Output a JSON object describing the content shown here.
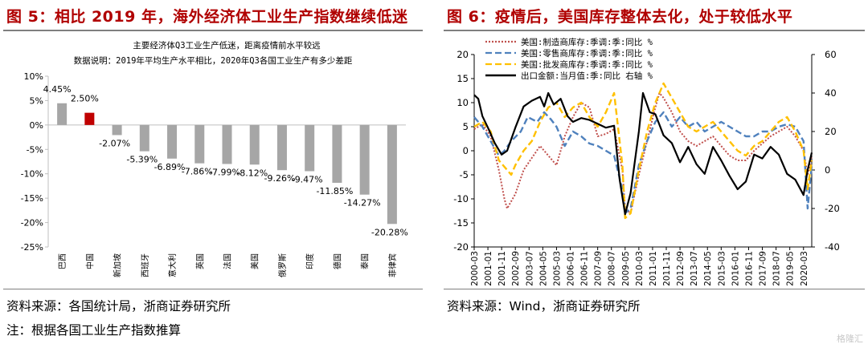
{
  "left": {
    "fig_title": "图 5：相比 2019 年，海外经济体工业生产指数继续低迷",
    "source": "资料来源：各国统计局，浙商证券研究所",
    "note": "注：根据各国工业生产指数推算"
  },
  "right": {
    "fig_title": "图 6：疫情后，美国库存整体去化，处于较低水平",
    "source": "资料来源：Wind，浙商证券研究所"
  },
  "watermark": "格隆汇",
  "chart_data": [
    {
      "type": "bar",
      "title": "主要经济体Q3工业生产低迷，距离疫情前水平较远",
      "subtitle": "数据说明：2019年平均生产水平相比，2020年Q3各国工业生产有多少差距",
      "categories": [
        "巴西",
        "中国",
        "新加坡",
        "西班牙",
        "意大利",
        "英国",
        "法国",
        "美国",
        "俄罗斯",
        "印度",
        "德国",
        "泰国",
        "菲律宾"
      ],
      "values": [
        4.45,
        2.5,
        -2.07,
        -5.39,
        -6.89,
        -7.86,
        -7.99,
        -8.12,
        -9.26,
        -9.47,
        -11.85,
        -14.27,
        -20.28
      ],
      "value_labels": [
        "4.45%",
        "2.50%",
        "-2.07%",
        "-5.39%",
        "-6.89%",
        "-7.86%",
        "-7.99%",
        "-8.12%",
        "-9.26%",
        "-9.47%",
        "-11.85%",
        "-14.27%",
        "-20.28%"
      ],
      "highlight_index": 1,
      "colors": {
        "bar": "#a6a6a6",
        "highlight": "#c00000"
      },
      "ylim": [
        -25,
        10
      ],
      "yticks": [
        10,
        5,
        0,
        -5,
        -10,
        -15,
        -20,
        -25
      ],
      "ytick_labels": [
        "10%",
        "5%",
        "0%",
        "-5%",
        "-10%",
        "-15%",
        "-20%",
        "-25%"
      ],
      "grid": false
    },
    {
      "type": "line",
      "x_labels": [
        "2000-03",
        "2001-01",
        "2001-11",
        "2002-09",
        "2003-07",
        "2004-05",
        "2005-03",
        "2006-01",
        "2006-11",
        "2007-09",
        "2008-07",
        "2009-05",
        "2010-03",
        "2011-01",
        "2011-11",
        "2012-09",
        "2013-07",
        "2014-05",
        "2015-03",
        "2016-01",
        "2016-11",
        "2017-09",
        "2018-07",
        "2019-05",
        "2020-03"
      ],
      "x_start": "2000-03",
      "x_end": "2020-09",
      "ylim_left": [
        -20,
        20
      ],
      "yticks_left": [
        20,
        15,
        10,
        5,
        0,
        -5,
        -10,
        -15,
        -20
      ],
      "ylim_right": [
        -40,
        60
      ],
      "yticks_right": [
        60,
        40,
        20,
        0,
        -20,
        -40
      ],
      "legend_position": "top-left",
      "grid": false,
      "series": [
        {
          "name": "美国:制造商库存:季调:季:同比 %",
          "style": "dotted",
          "color": "#c0504d",
          "axis": "left",
          "points": [
            [
              "2000-03",
              4.5
            ],
            [
              "2000-09",
              5.5
            ],
            [
              "2001-03",
              3
            ],
            [
              "2001-09",
              -4
            ],
            [
              "2002-01",
              -10
            ],
            [
              "2002-03",
              -12
            ],
            [
              "2002-09",
              -9
            ],
            [
              "2003-03",
              -4
            ],
            [
              "2003-09",
              -1.5
            ],
            [
              "2004-03",
              1
            ],
            [
              "2004-09",
              -1
            ],
            [
              "2005-03",
              -3
            ],
            [
              "2005-09",
              3
            ],
            [
              "2006-03",
              7
            ],
            [
              "2006-09",
              10
            ],
            [
              "2007-03",
              9
            ],
            [
              "2007-09",
              3
            ],
            [
              "2008-03",
              3.5
            ],
            [
              "2008-09",
              4.5
            ],
            [
              "2009-03",
              -4
            ],
            [
              "2009-05",
              -12
            ],
            [
              "2009-09",
              -13
            ],
            [
              "2010-03",
              -5
            ],
            [
              "2010-09",
              2
            ],
            [
              "2011-03",
              9
            ],
            [
              "2011-06",
              12
            ],
            [
              "2011-09",
              11
            ],
            [
              "2012-03",
              8
            ],
            [
              "2012-09",
              4
            ],
            [
              "2013-03",
              2
            ],
            [
              "2013-09",
              1
            ],
            [
              "2014-03",
              2
            ],
            [
              "2014-09",
              3
            ],
            [
              "2015-03",
              1
            ],
            [
              "2015-09",
              -1
            ],
            [
              "2016-03",
              -2
            ],
            [
              "2016-09",
              -2
            ],
            [
              "2017-03",
              0
            ],
            [
              "2017-09",
              1.5
            ],
            [
              "2018-03",
              3
            ],
            [
              "2018-09",
              4
            ],
            [
              "2019-03",
              5
            ],
            [
              "2019-09",
              3
            ],
            [
              "2020-03",
              0
            ],
            [
              "2020-06",
              -5
            ],
            [
              "2020-09",
              -1
            ]
          ]
        },
        {
          "name": "美国:零售商库存:季调:季:同比 %",
          "style": "dashed",
          "color": "#4f81bd",
          "axis": "left",
          "points": [
            [
              "2000-03",
              7
            ],
            [
              "2000-09",
              5
            ],
            [
              "2001-03",
              2
            ],
            [
              "2001-09",
              -1
            ],
            [
              "2002-01",
              0
            ],
            [
              "2002-06",
              2
            ],
            [
              "2003-01",
              4
            ],
            [
              "2003-06",
              7
            ],
            [
              "2004-01",
              6
            ],
            [
              "2004-06",
              8
            ],
            [
              "2004-11",
              6.5
            ],
            [
              "2005-03",
              5
            ],
            [
              "2005-09",
              1
            ],
            [
              "2006-03",
              4
            ],
            [
              "2006-09",
              3
            ],
            [
              "2007-03",
              1.5
            ],
            [
              "2007-09",
              1
            ],
            [
              "2008-03",
              0
            ],
            [
              "2008-09",
              -1
            ],
            [
              "2009-03",
              -8
            ],
            [
              "2009-05",
              -13
            ],
            [
              "2009-09",
              -12
            ],
            [
              "2010-03",
              -3
            ],
            [
              "2010-09",
              2
            ],
            [
              "2011-03",
              6
            ],
            [
              "2011-09",
              8
            ],
            [
              "2012-03",
              5
            ],
            [
              "2012-09",
              7
            ],
            [
              "2013-03",
              5
            ],
            [
              "2013-09",
              6
            ],
            [
              "2014-03",
              4
            ],
            [
              "2014-09",
              5
            ],
            [
              "2015-03",
              6
            ],
            [
              "2015-09",
              5
            ],
            [
              "2016-03",
              4
            ],
            [
              "2016-09",
              3
            ],
            [
              "2017-03",
              3
            ],
            [
              "2017-09",
              4
            ],
            [
              "2018-03",
              4
            ],
            [
              "2018-09",
              5
            ],
            [
              "2019-03",
              5.5
            ],
            [
              "2019-09",
              5
            ],
            [
              "2020-03",
              2
            ],
            [
              "2020-06",
              -12
            ],
            [
              "2020-09",
              -3
            ]
          ]
        },
        {
          "name": "美国:批发商库存:季调:季:同比 %",
          "style": "dashed",
          "color": "#ffc000",
          "axis": "left",
          "points": [
            [
              "2000-03",
              5
            ],
            [
              "2000-09",
              6
            ],
            [
              "2001-03",
              4
            ],
            [
              "2001-09",
              -2
            ],
            [
              "2002-03",
              -4
            ],
            [
              "2002-06",
              -5
            ],
            [
              "2002-09",
              -3
            ],
            [
              "2003-03",
              0
            ],
            [
              "2003-09",
              2
            ],
            [
              "2004-03",
              6
            ],
            [
              "2004-09",
              9
            ],
            [
              "2005-03",
              10
            ],
            [
              "2005-09",
              7
            ],
            [
              "2006-03",
              9
            ],
            [
              "2006-09",
              10
            ],
            [
              "2007-03",
              7
            ],
            [
              "2007-09",
              5
            ],
            [
              "2008-03",
              8
            ],
            [
              "2008-09",
              12
            ],
            [
              "2009-03",
              -3
            ],
            [
              "2009-05",
              -14
            ],
            [
              "2009-09",
              -13
            ],
            [
              "2010-03",
              -4
            ],
            [
              "2010-09",
              4
            ],
            [
              "2011-03",
              10
            ],
            [
              "2011-09",
              14
            ],
            [
              "2012-03",
              11
            ],
            [
              "2012-09",
              8
            ],
            [
              "2013-03",
              5
            ],
            [
              "2013-09",
              4
            ],
            [
              "2014-03",
              5
            ],
            [
              "2014-09",
              6
            ],
            [
              "2015-03",
              4
            ],
            [
              "2015-09",
              2
            ],
            [
              "2016-03",
              0
            ],
            [
              "2016-09",
              -1
            ],
            [
              "2017-03",
              1
            ],
            [
              "2017-09",
              2
            ],
            [
              "2018-03",
              4
            ],
            [
              "2018-09",
              6
            ],
            [
              "2019-03",
              7
            ],
            [
              "2019-09",
              4
            ],
            [
              "2020-03",
              0
            ],
            [
              "2020-06",
              -8
            ],
            [
              "2020-09",
              -2
            ]
          ]
        },
        {
          "name": "出口金额:当月值:季:同比 右轴 %",
          "style": "solid",
          "color": "#000000",
          "axis": "right",
          "points": [
            [
              "2000-03",
              39
            ],
            [
              "2000-06",
              37
            ],
            [
              "2000-09",
              28
            ],
            [
              "2001-01",
              22
            ],
            [
              "2001-06",
              14
            ],
            [
              "2001-11",
              8
            ],
            [
              "2002-03",
              10
            ],
            [
              "2002-09",
              22
            ],
            [
              "2003-03",
              33
            ],
            [
              "2003-09",
              36
            ],
            [
              "2004-03",
              38
            ],
            [
              "2004-06",
              33
            ],
            [
              "2004-09",
              40
            ],
            [
              "2005-01",
              34
            ],
            [
              "2005-06",
              37
            ],
            [
              "2005-11",
              28
            ],
            [
              "2006-03",
              25
            ],
            [
              "2006-09",
              27
            ],
            [
              "2007-03",
              26
            ],
            [
              "2007-09",
              24
            ],
            [
              "2008-03",
              22
            ],
            [
              "2008-09",
              23
            ],
            [
              "2009-01",
              -5
            ],
            [
              "2009-05",
              -23
            ],
            [
              "2009-09",
              -12
            ],
            [
              "2010-03",
              20
            ],
            [
              "2010-06",
              40
            ],
            [
              "2010-11",
              30
            ],
            [
              "2011-03",
              29
            ],
            [
              "2011-09",
              18
            ],
            [
              "2012-03",
              14
            ],
            [
              "2012-09",
              4
            ],
            [
              "2013-03",
              12
            ],
            [
              "2013-09",
              3
            ],
            [
              "2014-03",
              -2
            ],
            [
              "2014-09",
              12
            ],
            [
              "2015-03",
              5
            ],
            [
              "2015-09",
              -3
            ],
            [
              "2016-03",
              -10
            ],
            [
              "2016-09",
              -6
            ],
            [
              "2017-03",
              8
            ],
            [
              "2017-09",
              6
            ],
            [
              "2018-03",
              12
            ],
            [
              "2018-09",
              8
            ],
            [
              "2019-03",
              -2
            ],
            [
              "2019-09",
              -5
            ],
            [
              "2020-03",
              -13
            ],
            [
              "2020-06",
              0
            ],
            [
              "2020-09",
              9
            ]
          ]
        }
      ]
    }
  ]
}
